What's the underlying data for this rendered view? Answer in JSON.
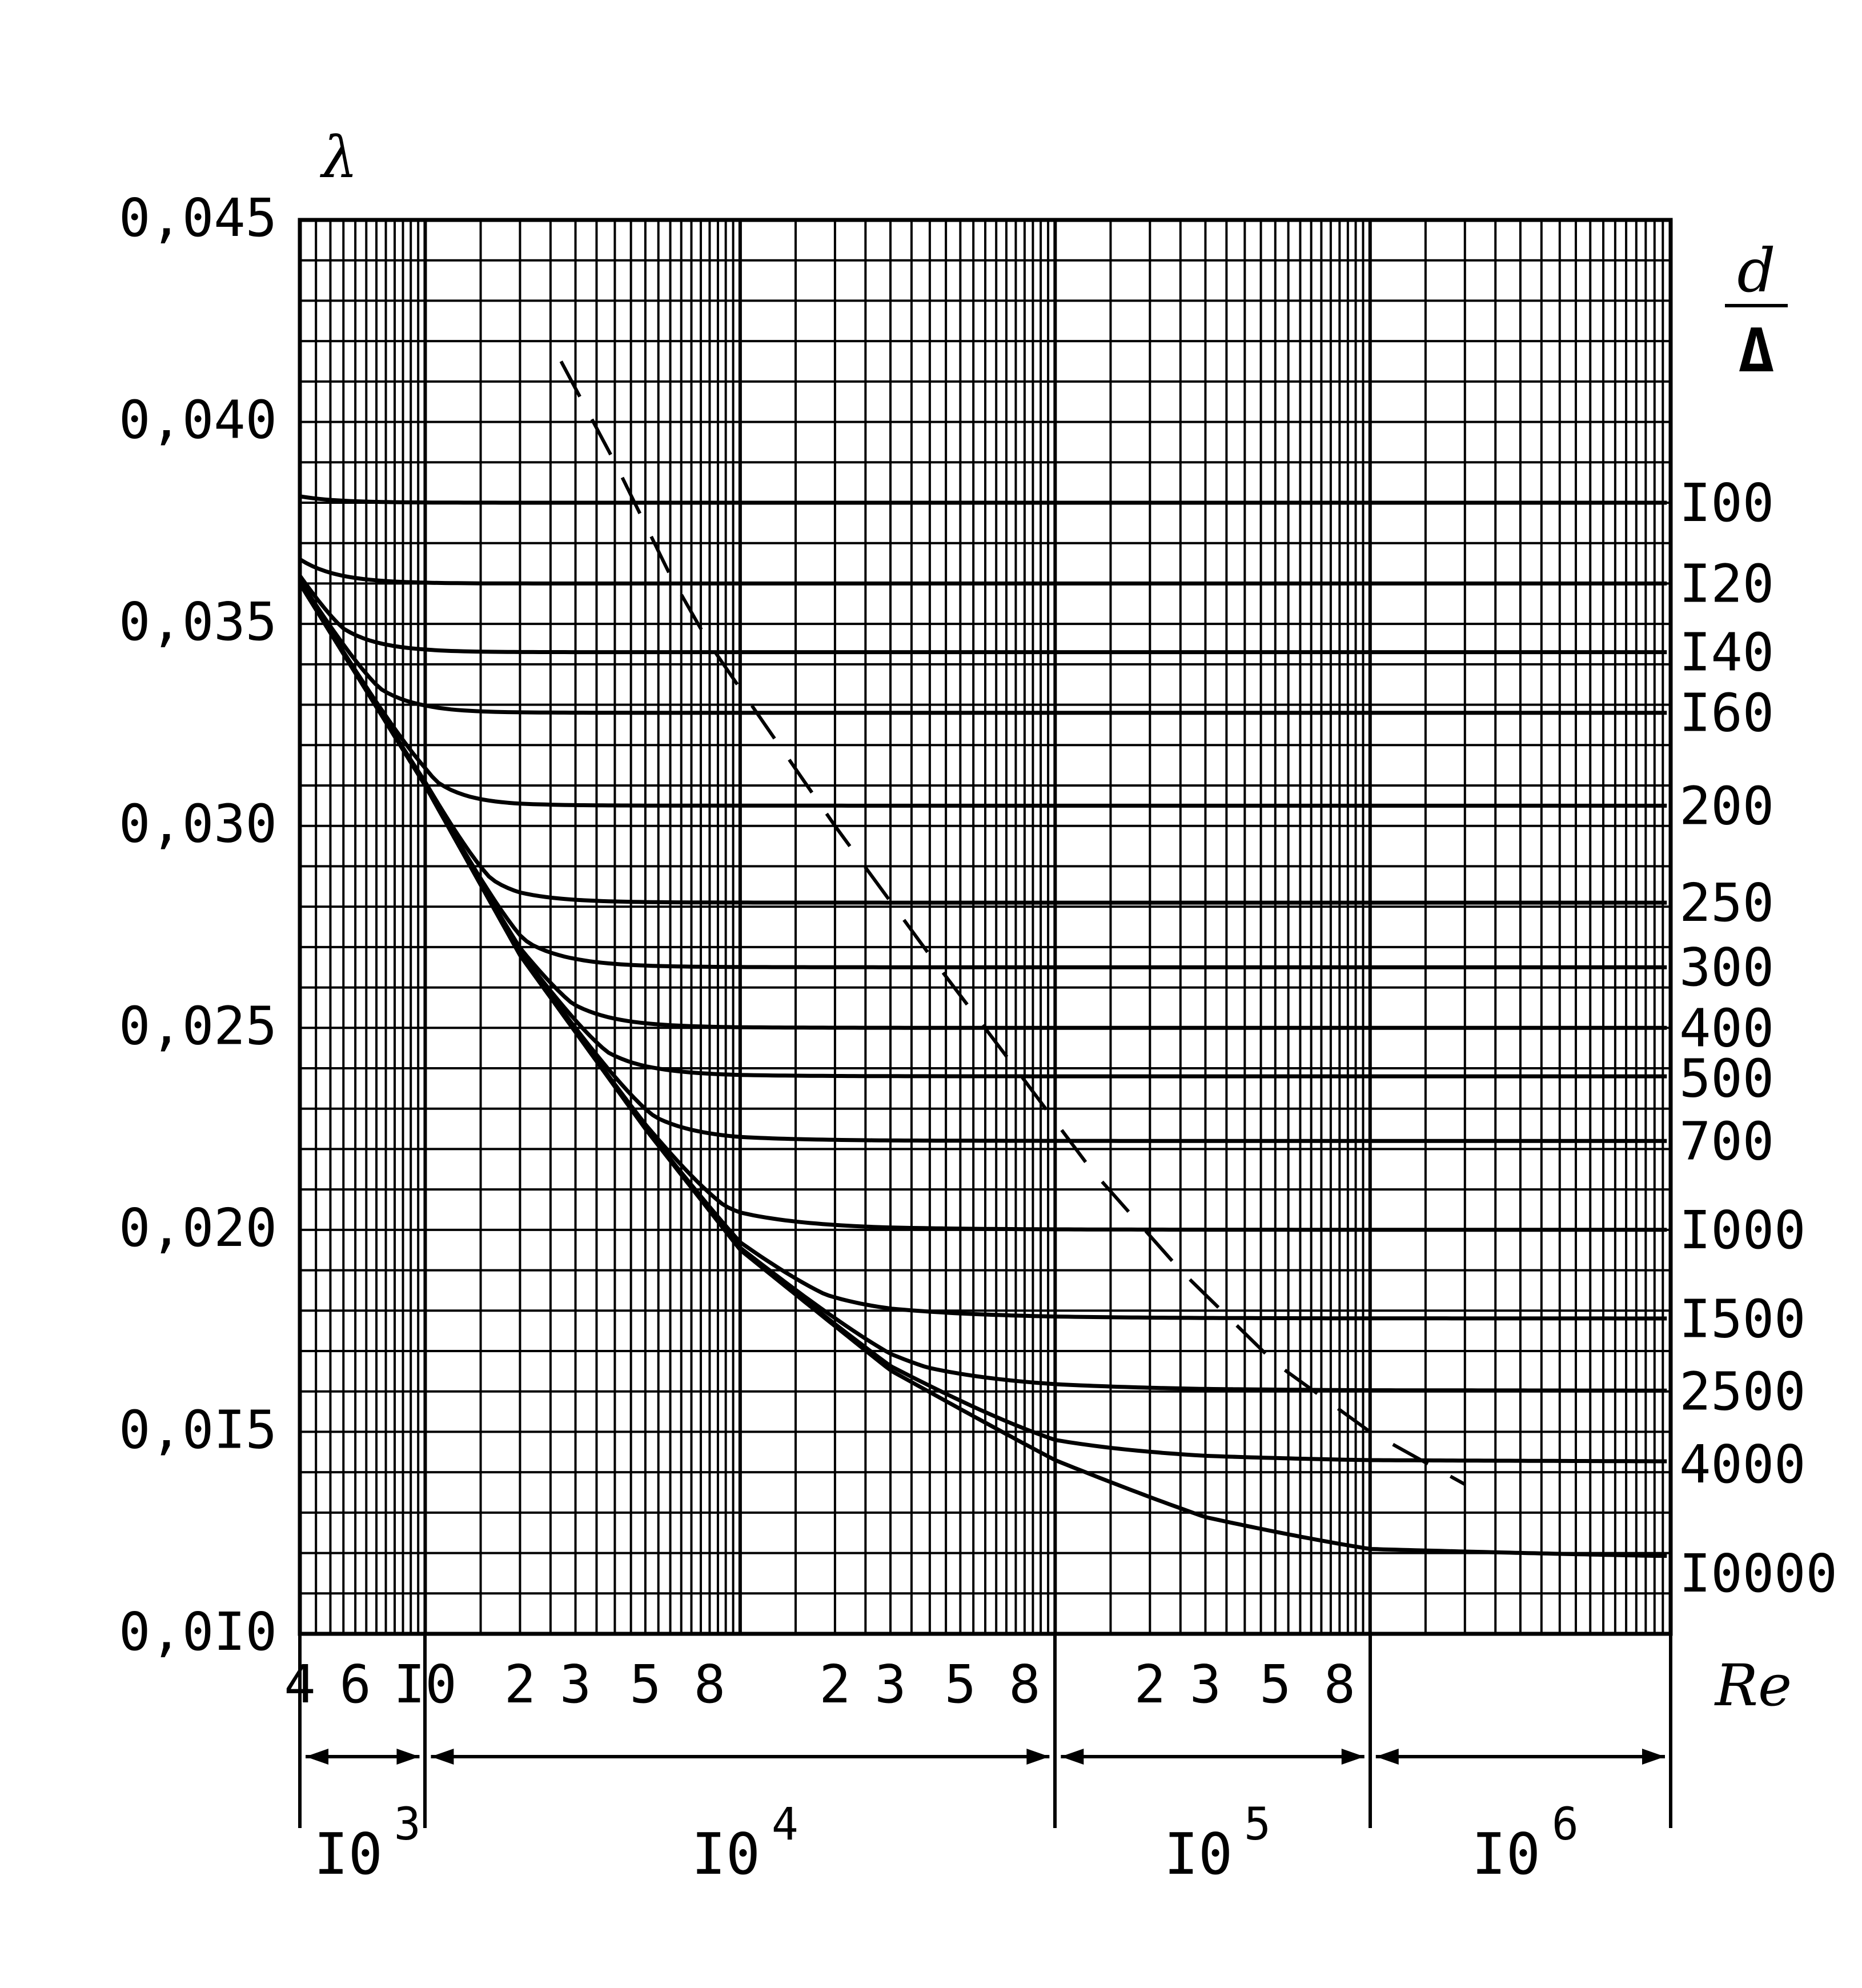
{
  "chart_data": {
    "type": "line",
    "y_axis": {
      "symbol": "λ",
      "ylim": [
        0.01,
        0.045
      ],
      "tick_values": [
        0.01,
        0.015,
        0.02,
        0.025,
        0.03,
        0.035,
        0.04,
        0.045
      ],
      "tick_labels": [
        "0,0I0",
        "0,0I5",
        "0,020",
        "0,025",
        "0,030",
        "0,035",
        "0,040",
        "0,045"
      ]
    },
    "x_axis": {
      "label": "Re",
      "scale": "log",
      "xlim": [
        400,
        9000000
      ],
      "tick_values": [
        400,
        600,
        1000,
        2000,
        3000,
        5000,
        8000,
        20000,
        30000,
        50000,
        80000,
        200000,
        300000,
        500000,
        800000
      ],
      "tick_labels": [
        "4",
        "6",
        "I0",
        "2",
        "3",
        "5",
        "8",
        "2",
        "3",
        "5",
        "8",
        "2",
        "3",
        "5",
        "8"
      ],
      "decades": [
        {
          "base": "I0",
          "exp": "3",
          "from": 400,
          "to": 1000
        },
        {
          "base": "I0",
          "exp": "4",
          "from": 1000,
          "to": 100000
        },
        {
          "base": "I0",
          "exp": "5",
          "from": 100000,
          "to": 1000000
        },
        {
          "base": "I0",
          "exp": "6",
          "from": 1000000,
          "to": 9000000
        }
      ]
    },
    "legend_title": {
      "numerator": "d",
      "denominator": "Δ"
    },
    "grid": true,
    "series": [
      {
        "name": "I00",
        "lambda_inf": 0.038
      },
      {
        "name": "I20",
        "lambda_inf": 0.036
      },
      {
        "name": "I40",
        "lambda_inf": 0.0343
      },
      {
        "name": "I60",
        "lambda_inf": 0.0328
      },
      {
        "name": "200",
        "lambda_inf": 0.0305
      },
      {
        "name": "250",
        "lambda_inf": 0.0281
      },
      {
        "name": "300",
        "lambda_inf": 0.0265
      },
      {
        "name": "400",
        "lambda_inf": 0.025
      },
      {
        "name": "500",
        "lambda_inf": 0.0238
      },
      {
        "name": "700",
        "lambda_inf": 0.0222
      },
      {
        "name": "I000",
        "lambda_inf": 0.02
      },
      {
        "name": "I500",
        "lambda_inf": 0.0178
      },
      {
        "name": "2500",
        "lambda_inf": 0.016
      },
      {
        "name": "4000",
        "lambda_inf": 0.0142
      },
      {
        "name": "I0000",
        "lambda_inf": 0.0115
      }
    ],
    "smooth_curve_points": [
      {
        "re": 400,
        "lambda": 0.036
      },
      {
        "re": 1000,
        "lambda": 0.031
      },
      {
        "re": 2000,
        "lambda": 0.0268
      },
      {
        "re": 5000,
        "lambda": 0.0225
      },
      {
        "re": 10000,
        "lambda": 0.0195
      },
      {
        "re": 30000,
        "lambda": 0.0165
      },
      {
        "re": 100000,
        "lambda": 0.0142
      },
      {
        "re": 300000,
        "lambda": 0.0126
      },
      {
        "re": 1000000,
        "lambda": 0.0115
      },
      {
        "re": 8000000,
        "lambda": 0.011
      }
    ],
    "dashed_boundary": [
      {
        "re": 2700,
        "lambda": 0.0415
      },
      {
        "re": 4000,
        "lambda": 0.039
      },
      {
        "re": 6000,
        "lambda": 0.0362
      },
      {
        "re": 8000,
        "lambda": 0.0345
      },
      {
        "re": 12000,
        "lambda": 0.0325
      },
      {
        "re": 20000,
        "lambda": 0.03
      },
      {
        "re": 40000,
        "lambda": 0.0268
      },
      {
        "re": 70000,
        "lambda": 0.0243
      },
      {
        "re": 130000,
        "lambda": 0.0215
      },
      {
        "re": 250000,
        "lambda": 0.019
      },
      {
        "re": 500000,
        "lambda": 0.0167
      },
      {
        "re": 1000000,
        "lambda": 0.015
      },
      {
        "re": 2000000,
        "lambda": 0.0137
      }
    ]
  }
}
